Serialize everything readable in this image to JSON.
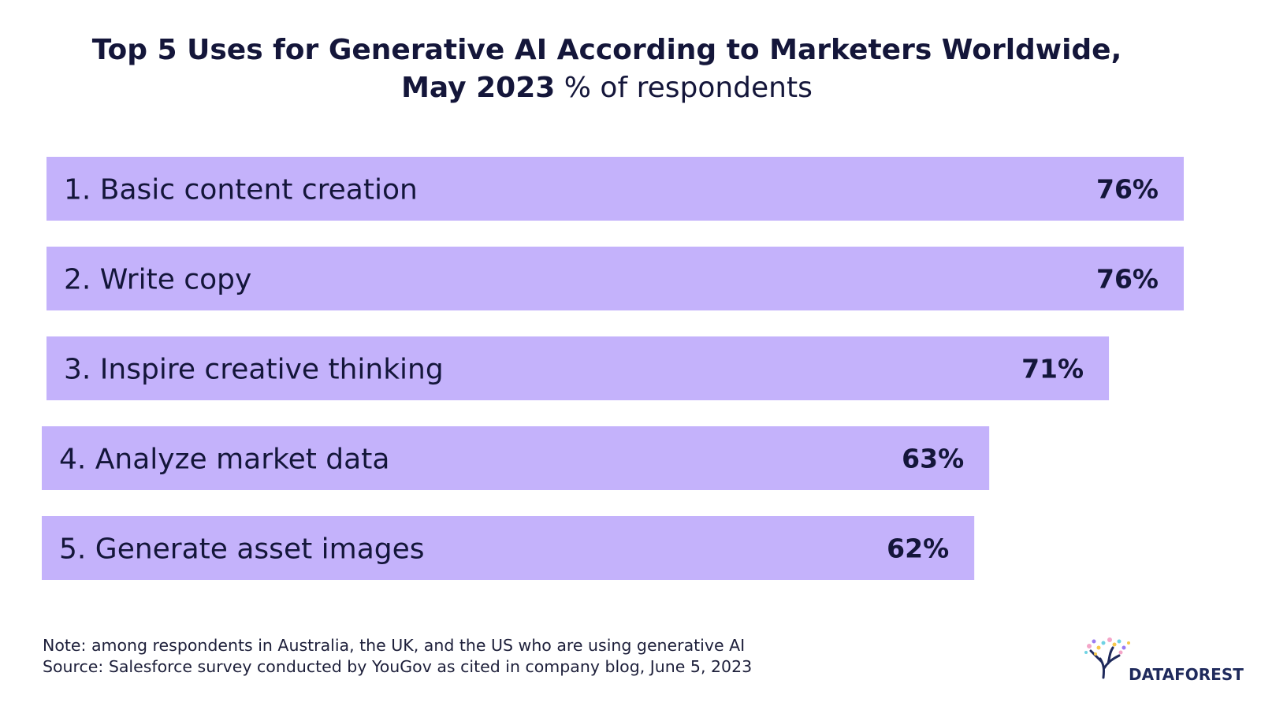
{
  "title": {
    "line1": "Top 5 Uses for Generative AI According to Marketers Worldwide,",
    "line2_bold": "May 2023",
    "line2_light": "% of respondents"
  },
  "colors": {
    "bar": "#c4b2fb",
    "text": "#14163a"
  },
  "chart_data": {
    "type": "bar",
    "orientation": "horizontal",
    "title": "Top 5 Uses for Generative AI According to Marketers Worldwide, May 2023",
    "subtitle": "% of respondents",
    "categories": [
      "1. Basic content creation",
      "2. Write copy",
      "3. Inspire creative thinking",
      "4. Analyze market data",
      "5. Generate asset images"
    ],
    "values": [
      76,
      76,
      71,
      63,
      62
    ],
    "value_labels": [
      "76%",
      "76%",
      "71%",
      "63%",
      "62%"
    ],
    "unit": "%",
    "xlim": [
      0,
      76
    ]
  },
  "footer": {
    "note": "Note: among respondents in Australia, the UK, and the US who are using generative AI",
    "source": "Source: Salesforce survey conducted by YouGov as cited in company blog, June 5, 2023"
  },
  "logo": {
    "text": "DATAFOREST",
    "icon": "tree-icon"
  }
}
